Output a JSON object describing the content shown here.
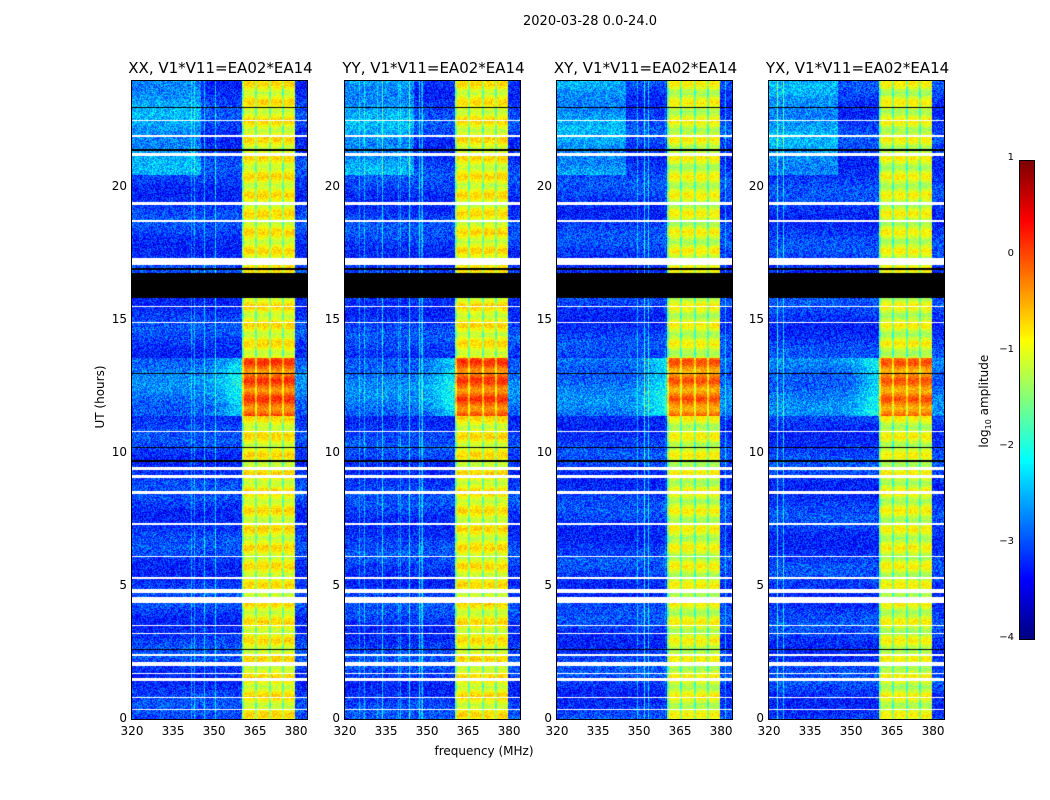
{
  "chart_data": {
    "type": "heatmap",
    "title": "2020-03-28 0.0-24.0",
    "xlabel": "frequency (MHz)",
    "ylabel": "UT (hours)",
    "xlim": [
      320,
      384
    ],
    "ylim": [
      0,
      24
    ],
    "xticks": [
      320,
      335,
      350,
      365,
      380
    ],
    "yticks": [
      0,
      5,
      10,
      15,
      20
    ],
    "panels": [
      {
        "title": "XX, V1*V11=EA02*EA14"
      },
      {
        "title": "YY, V1*V11=EA02*EA14"
      },
      {
        "title": "XY, V1*V11=EA02*EA14"
      },
      {
        "title": "YX, V1*V11=EA02*EA14"
      }
    ],
    "colorbar": {
      "label_prefix": "log",
      "label_sub": "10",
      "label_suffix": " amplitude",
      "range": [
        -4,
        1
      ],
      "ticks": [
        1,
        0,
        -1,
        -2,
        -3,
        -4
      ],
      "colormap": "jet"
    },
    "rfi_band_mhz": [
      360,
      379.5
    ],
    "active_period_hours": [
      11.4,
      13.6
    ],
    "flagged_white_hours": [
      [
        0.35,
        0.4
      ],
      [
        0.8,
        0.85
      ],
      [
        1.45,
        1.55
      ],
      [
        1.7,
        1.75
      ],
      [
        2.0,
        2.15
      ],
      [
        2.4,
        2.45
      ],
      [
        3.2,
        3.25
      ],
      [
        3.5,
        3.55
      ],
      [
        4.4,
        4.6
      ],
      [
        4.75,
        4.9
      ],
      [
        5.3,
        5.35
      ],
      [
        6.1,
        6.15
      ],
      [
        7.3,
        7.4
      ],
      [
        8.5,
        8.6
      ],
      [
        9.1,
        9.2
      ],
      [
        9.4,
        9.5
      ],
      [
        10.8,
        10.85
      ],
      [
        14.9,
        14.95
      ],
      [
        15.5,
        15.55
      ],
      [
        17.1,
        17.35
      ],
      [
        18.7,
        18.8
      ],
      [
        19.35,
        19.45
      ],
      [
        21.2,
        21.3
      ],
      [
        21.9,
        22.0
      ],
      [
        22.5,
        22.55
      ]
    ],
    "flagged_black_hours": [
      [
        15.85,
        16.8
      ],
      [
        16.9,
        17.0
      ],
      [
        13.0,
        13.05
      ],
      [
        21.4,
        21.45
      ],
      [
        23.0,
        23.05
      ],
      [
        2.6,
        2.65
      ],
      [
        9.7,
        9.75
      ],
      [
        10.2,
        10.25
      ]
    ]
  }
}
